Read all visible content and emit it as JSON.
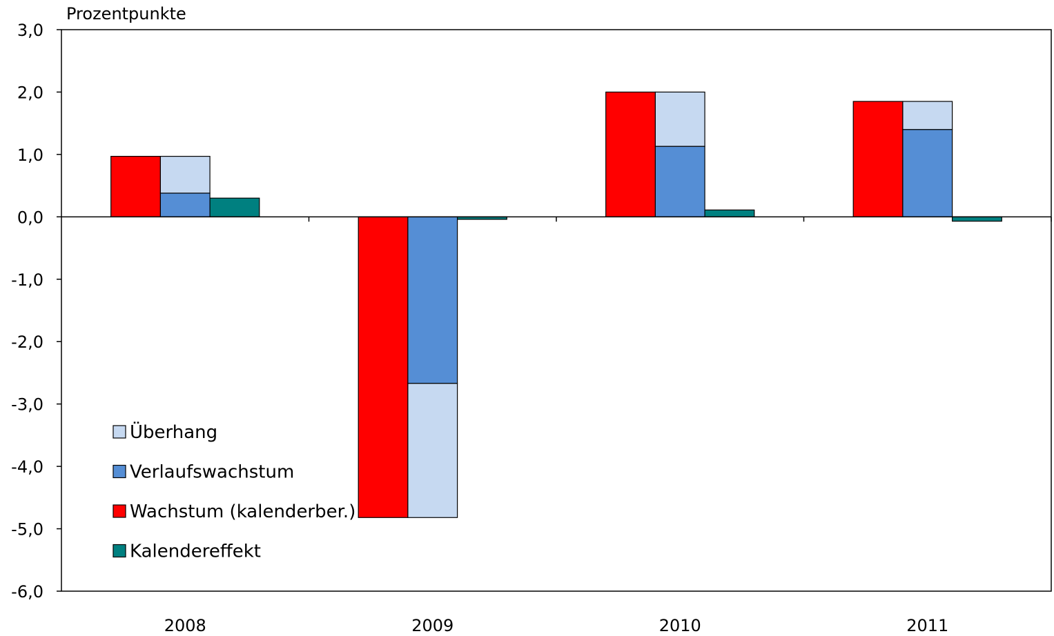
{
  "chart_data": {
    "type": "bar",
    "unit_label": "Prozentpunkte",
    "categories": [
      "2008",
      "2009",
      "2010",
      "2011"
    ],
    "ylim": [
      -6,
      3
    ],
    "yticks": [
      3,
      2,
      1,
      0,
      -1,
      -2,
      -3,
      -4,
      -5,
      -6
    ],
    "ytick_labels": [
      "3,0",
      "2,0",
      "1,0",
      "0,0",
      "-1,0",
      "-2,0",
      "-3,0",
      "-4,0",
      "-5,0",
      "-6,0"
    ],
    "grid": false,
    "legend_position": "bottom-left",
    "bar_groups": [
      {
        "name": "Wachstum (kalenderber.)",
        "stacked": false
      },
      {
        "name": "Verlaufswachstum + Überhang",
        "stacked": true
      },
      {
        "name": "Kalendereffekt",
        "stacked": false
      }
    ],
    "series": [
      {
        "name": "Wachstum (kalenderber.)",
        "values": [
          0.97,
          -4.82,
          2.0,
          1.85
        ],
        "color": "#ff0000",
        "bar": 0
      },
      {
        "name": "Verlaufswachstum",
        "values": [
          0.38,
          -2.67,
          1.13,
          1.4
        ],
        "color": "#558ed5",
        "bar": 1
      },
      {
        "name": "Überhang",
        "values": [
          0.59,
          -2.15,
          0.87,
          0.45
        ],
        "color": "#c6d9f1",
        "bar": 1
      },
      {
        "name": "Kalendereffekt",
        "values": [
          0.3,
          -0.04,
          0.11,
          -0.07
        ],
        "color": "#008080",
        "bar": 2
      }
    ],
    "legend": [
      {
        "label": "Überhang",
        "color": "#c6d9f1"
      },
      {
        "label": "Verlaufswachstum",
        "color": "#558ed5"
      },
      {
        "label": "Wachstum (kalenderber.)",
        "color": "#ff0000"
      },
      {
        "label": "Kalendereffekt",
        "color": "#008080"
      }
    ]
  }
}
